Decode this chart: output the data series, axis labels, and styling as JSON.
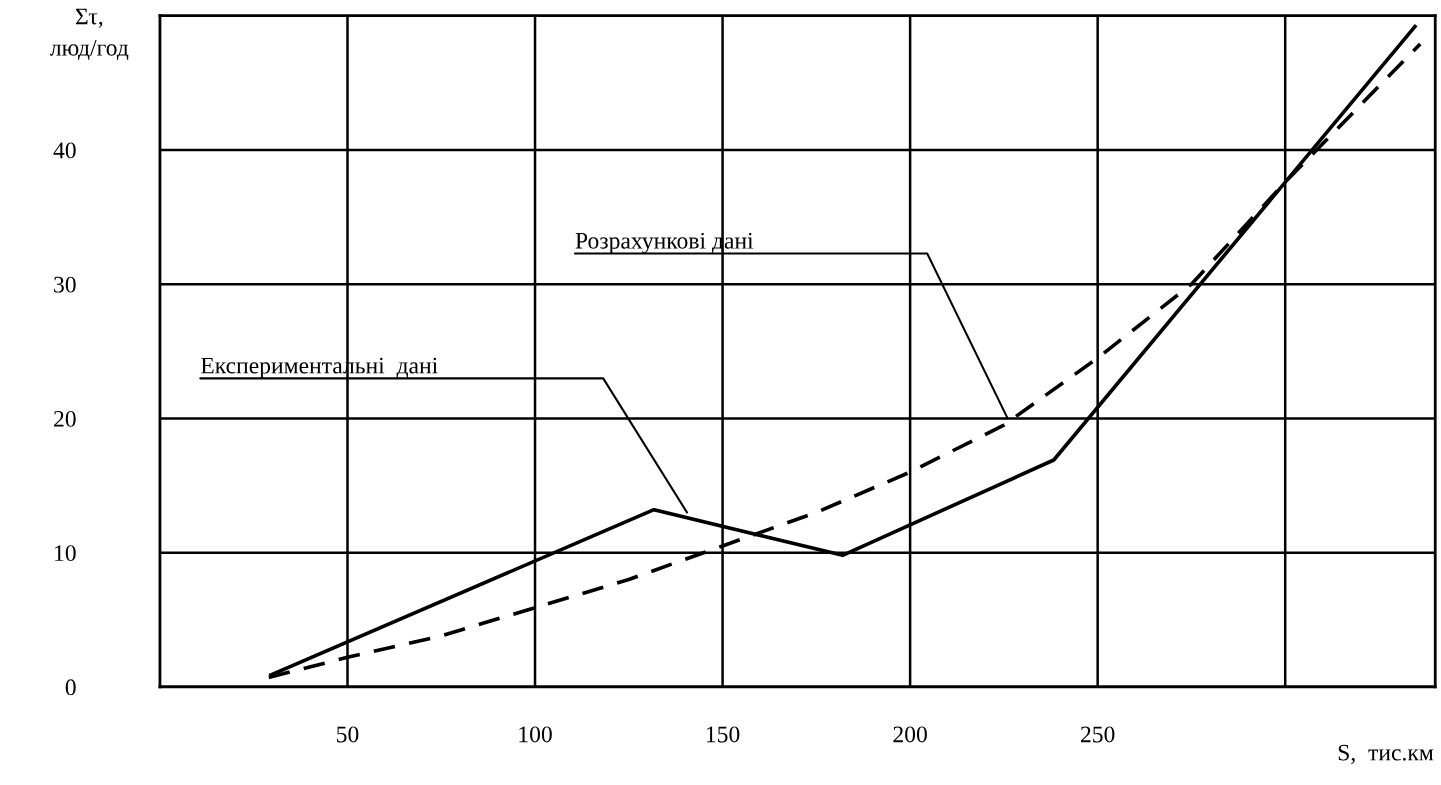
{
  "chart_data": {
    "type": "line",
    "xlabel": "S,  тис.км",
    "ylabel": "Στ,\nлюд/год",
    "series": [
      {
        "color": "#000000",
        "line_style": "solid",
        "x": [
          29.6,
          131.7,
          182,
          238.3,
          334.6
        ],
        "values": [
          0.9,
          13.2,
          9.8,
          16.9,
          49.2
        ]
      },
      {
        "color": "#000000",
        "line_style": "dashed",
        "x": [
          29,
          50,
          75,
          100,
          125,
          150,
          175,
          200,
          225,
          250,
          275,
          300,
          336
        ],
        "values": [
          0.7,
          2.2,
          3.8,
          5.9,
          8.0,
          10.5,
          13.0,
          16.0,
          19.5,
          24.5,
          30.0,
          37.6,
          47.9
        ]
      }
    ],
    "annotations": [
      {
        "text": "Експериментальні  дані",
        "x": 140.5,
        "y": 13
      },
      {
        "text": "Розрахункові дані",
        "x": 226,
        "y": 20
      }
    ],
    "xlim": [
      0,
      340
    ],
    "ylim": [
      0,
      50
    ],
    "xticks": [
      50,
      100,
      150,
      200,
      250,
      {
        "value": 300,
        "label": null
      }
    ],
    "yticks": [
      0,
      10,
      20,
      30,
      40
    ],
    "grid": true,
    "legend": false,
    "marker": "none"
  }
}
